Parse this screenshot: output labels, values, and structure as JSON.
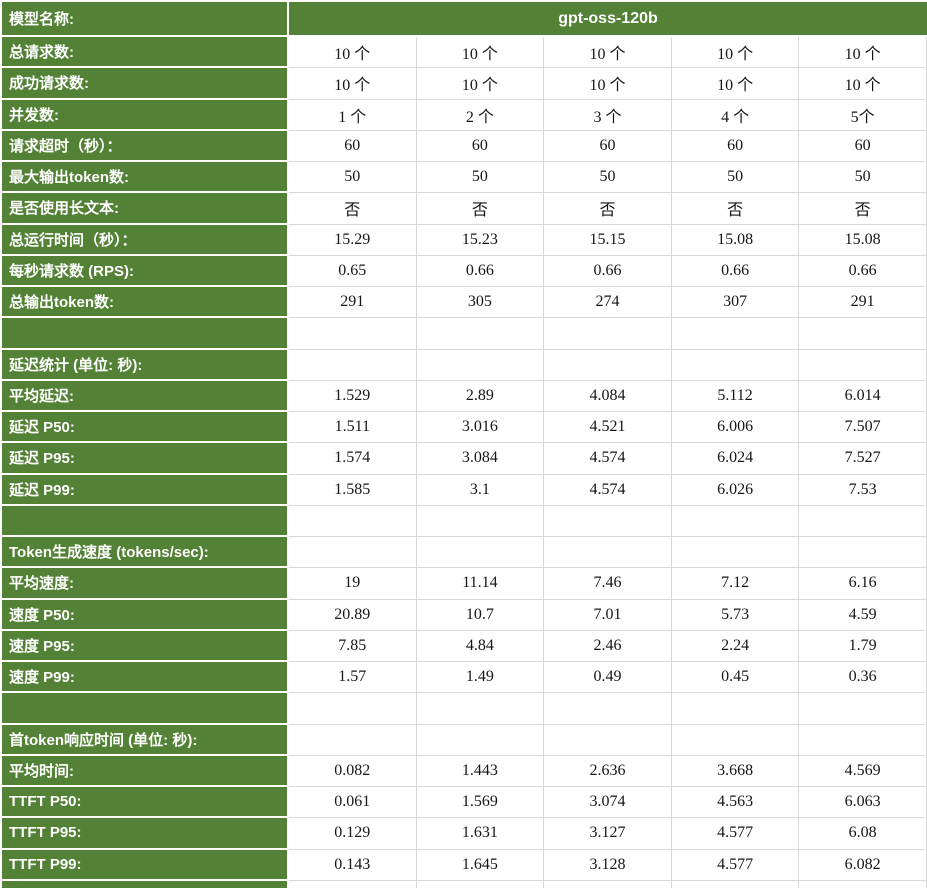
{
  "table": {
    "model_label": "模型名称:",
    "model_name": "gpt-oss-120b",
    "colors": {
      "header_green": "#538135",
      "label_text": "#ffffff",
      "value_text": "#161616",
      "grid_line": "#d9d9d9"
    },
    "rows": [
      {
        "label": "总请求数:",
        "values": [
          "10 个",
          "10 个",
          "10 个",
          "10 个",
          "10 个"
        ]
      },
      {
        "label": "成功请求数:",
        "values": [
          "10 个",
          "10 个",
          "10 个",
          "10 个",
          "10 个"
        ]
      },
      {
        "label": "并发数:",
        "values": [
          "1 个",
          "2 个",
          "3 个",
          "4 个",
          "5个"
        ]
      },
      {
        "label": "请求超时（秒）：",
        "values": [
          "60",
          "60",
          "60",
          "60",
          "60"
        ]
      },
      {
        "label": "最大输出token数:",
        "values": [
          "50",
          "50",
          "50",
          "50",
          "50"
        ]
      },
      {
        "label": "是否使用长文本:",
        "values": [
          "否",
          "否",
          "否",
          "否",
          "否"
        ]
      },
      {
        "label": "总运行时间（秒）：",
        "values": [
          "15.29",
          "15.23",
          "15.15",
          "15.08",
          "15.08"
        ]
      },
      {
        "label": "每秒请求数 (RPS):",
        "values": [
          "0.65",
          "0.66",
          "0.66",
          "0.66",
          "0.66"
        ]
      },
      {
        "label": "总输出token数:",
        "values": [
          "291",
          "305",
          "274",
          "307",
          "291"
        ]
      },
      {
        "label": "",
        "values": [
          "",
          "",
          "",
          "",
          ""
        ]
      },
      {
        "label": "延迟统计 (单位: 秒):",
        "values": [
          "",
          "",
          "",
          "",
          ""
        ]
      },
      {
        "label": "平均延迟:",
        "values": [
          "1.529",
          "2.89",
          "4.084",
          "5.112",
          "6.014"
        ]
      },
      {
        "label": "延迟 P50:",
        "values": [
          "1.511",
          "3.016",
          "4.521",
          "6.006",
          "7.507"
        ]
      },
      {
        "label": "延迟 P95:",
        "values": [
          "1.574",
          "3.084",
          "4.574",
          "6.024",
          "7.527"
        ]
      },
      {
        "label": "延迟 P99:",
        "values": [
          "1.585",
          "3.1",
          "4.574",
          "6.026",
          "7.53"
        ]
      },
      {
        "label": "",
        "values": [
          "",
          "",
          "",
          "",
          ""
        ]
      },
      {
        "label": "Token生成速度 (tokens/sec):",
        "values": [
          "",
          "",
          "",
          "",
          ""
        ]
      },
      {
        "label": "平均速度:",
        "values": [
          "19",
          "11.14",
          "7.46",
          "7.12",
          "6.16"
        ]
      },
      {
        "label": "速度 P50:",
        "values": [
          "20.89",
          "10.7",
          "7.01",
          "5.73",
          "4.59"
        ]
      },
      {
        "label": "速度 P95:",
        "values": [
          "7.85",
          "4.84",
          "2.46",
          "2.24",
          "1.79"
        ]
      },
      {
        "label": "速度 P99:",
        "values": [
          "1.57",
          "1.49",
          "0.49",
          "0.45",
          "0.36"
        ]
      },
      {
        "label": "",
        "values": [
          "",
          "",
          "",
          "",
          ""
        ]
      },
      {
        "label": "首token响应时间 (单位: 秒):",
        "values": [
          "",
          "",
          "",
          "",
          ""
        ]
      },
      {
        "label": "平均时间:",
        "values": [
          "0.082",
          "1.443",
          "2.636",
          "3.668",
          "4.569"
        ]
      },
      {
        "label": "TTFT P50:",
        "values": [
          "0.061",
          "1.569",
          "3.074",
          "4.563",
          "6.063"
        ]
      },
      {
        "label": "TTFT P95:",
        "values": [
          "0.129",
          "1.631",
          "3.127",
          "4.577",
          "6.08"
        ]
      },
      {
        "label": "TTFT P99:",
        "values": [
          "0.143",
          "1.645",
          "3.128",
          "4.577",
          "6.082"
        ]
      },
      {
        "label": "",
        "values": [
          "",
          "",
          "",
          "",
          ""
        ]
      }
    ]
  }
}
